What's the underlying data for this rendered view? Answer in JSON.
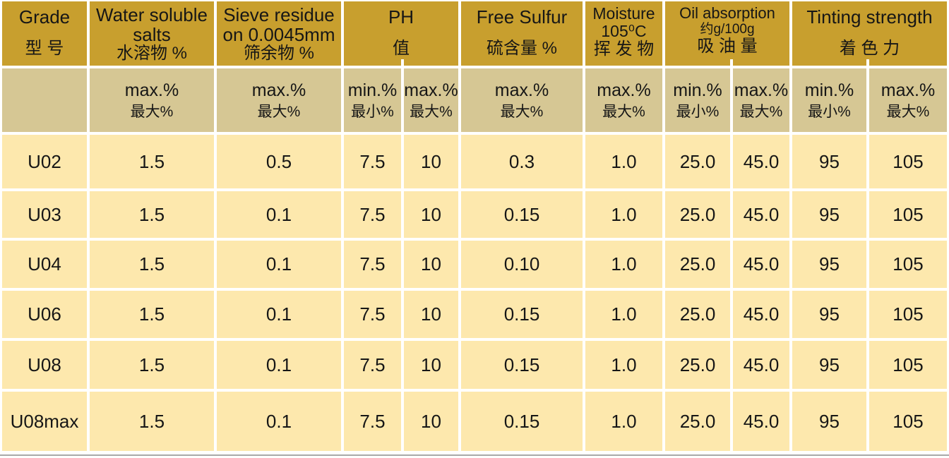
{
  "header": {
    "grade": {
      "en": "Grade",
      "cn": "型 号"
    },
    "water": {
      "en1": "Water soluble",
      "en2": "salts",
      "cn": "水溶物 %"
    },
    "sieve": {
      "en1": "Sieve residue",
      "en2": "on 0.0045mm",
      "cn": "筛余物 %"
    },
    "ph": {
      "en": "PH",
      "cn": "值"
    },
    "sulfur": {
      "en": "Free Sulfur",
      "cn": "硫含量 %"
    },
    "moisture": {
      "en1": "Moisture",
      "en2": "105⁰C",
      "cn": "挥 发 物"
    },
    "oil": {
      "en1": "Oil absorption",
      "en2": "约g/100g",
      "cn": "吸 油 量"
    },
    "tinting": {
      "en": "Tinting strength",
      "cn": "着 色 力"
    }
  },
  "subheader": {
    "min_en": "min.%",
    "min_cn": "最小%",
    "max_en": "max.%",
    "max_cn": "最大%"
  },
  "value_column_names": [
    "water-soluble-salts-max",
    "sieve-residue-max",
    "ph-min",
    "ph-max",
    "free-sulfur-max",
    "moisture-max",
    "oil-absorption-min",
    "oil-absorption-max",
    "tinting-strength-min",
    "tinting-strength-max"
  ],
  "rows": [
    {
      "grade": "U02",
      "values": [
        "1.5",
        "0.5",
        "7.5",
        "10",
        "0.3",
        "1.0",
        "25.0",
        "45.0",
        "95",
        "105"
      ]
    },
    {
      "grade": "U03",
      "values": [
        "1.5",
        "0.1",
        "7.5",
        "10",
        "0.15",
        "1.0",
        "25.0",
        "45.0",
        "95",
        "105"
      ]
    },
    {
      "grade": "U04",
      "values": [
        "1.5",
        "0.1",
        "7.5",
        "10",
        "0.10",
        "1.0",
        "25.0",
        "45.0",
        "95",
        "105"
      ]
    },
    {
      "grade": "U06",
      "values": [
        "1.5",
        "0.1",
        "7.5",
        "10",
        "0.15",
        "1.0",
        "25.0",
        "45.0",
        "95",
        "105"
      ]
    },
    {
      "grade": "U08",
      "values": [
        "1.5",
        "0.1",
        "7.5",
        "10",
        "0.15",
        "1.0",
        "25.0",
        "45.0",
        "95",
        "105"
      ]
    },
    {
      "grade": "U08max",
      "values": [
        "1.5",
        "0.1",
        "7.5",
        "10",
        "0.15",
        "1.0",
        "25.0",
        "45.0",
        "95",
        "105"
      ]
    }
  ],
  "colors": {
    "header_bg": "#C89F2E",
    "subheader_bg": "#D6C794",
    "row_bg": "#FDE8AD",
    "grid_line": "#FFFFFF",
    "text": "#161616",
    "bottom_rule": "#A9A9A9"
  }
}
